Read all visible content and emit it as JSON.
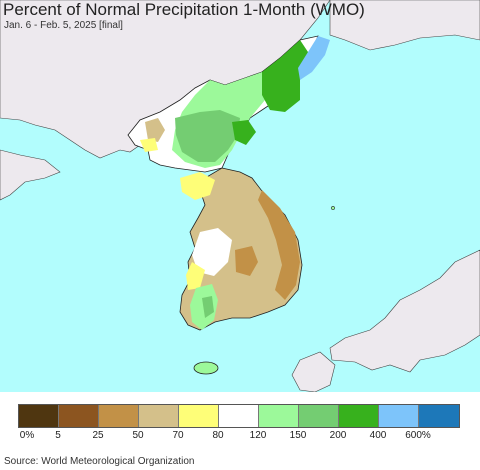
{
  "title": "Percent of Normal Precipitation 1-Month (WMO)",
  "subtitle": "Jan. 6 - Feb. 5, 2025 [final]",
  "source": "Source: World Meteorological Organization",
  "colors": {
    "sea": "#b2fdfd",
    "land_outside": "#ede9ee",
    "border": "#222222"
  },
  "legend": {
    "swatches": [
      "#4f3610",
      "#8c5520",
      "#c29147",
      "#d4c08a",
      "#fefe78",
      "#ffffff",
      "#9cf99a",
      "#74cd72",
      "#37b11d",
      "#7dc4fa",
      "#1d78b9"
    ],
    "ticks": [
      "0%",
      "5",
      "25",
      "50",
      "70",
      "80",
      "120",
      "150",
      "200",
      "400",
      "600%"
    ]
  }
}
